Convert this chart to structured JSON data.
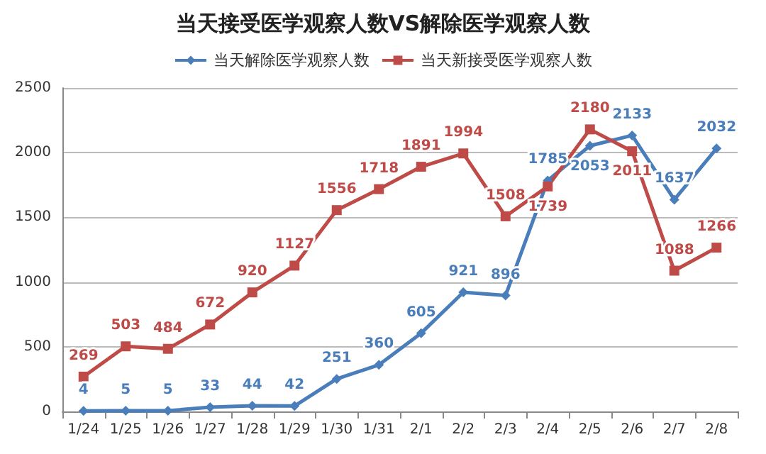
{
  "chart_data": {
    "type": "line",
    "title": "当天接受医学观察人数VS解除医学观察人数",
    "categories": [
      "1/24",
      "1/25",
      "1/26",
      "1/27",
      "1/28",
      "1/29",
      "1/30",
      "1/31",
      "2/1",
      "2/2",
      "2/3",
      "2/4",
      "2/5",
      "2/6",
      "2/7",
      "2/8"
    ],
    "series": [
      {
        "name": "当天解除医学观察人数",
        "color": "#4a7ebb",
        "marker": "diamond",
        "values": [
          4,
          5,
          5,
          33,
          44,
          42,
          251,
          360,
          605,
          921,
          896,
          1785,
          2053,
          2133,
          1637,
          2032
        ]
      },
      {
        "name": "当天新接受医学观察人数",
        "color": "#be4b48",
        "marker": "square",
        "values": [
          269,
          503,
          484,
          672,
          920,
          1127,
          1556,
          1718,
          1891,
          1994,
          1508,
          1739,
          2180,
          2011,
          1088,
          1266
        ]
      }
    ],
    "ylim": [
      0,
      2500
    ],
    "yticks": [
      0,
      500,
      1000,
      1500,
      2000,
      2500
    ],
    "grid": "y",
    "legend": "top",
    "data_labels": true
  }
}
